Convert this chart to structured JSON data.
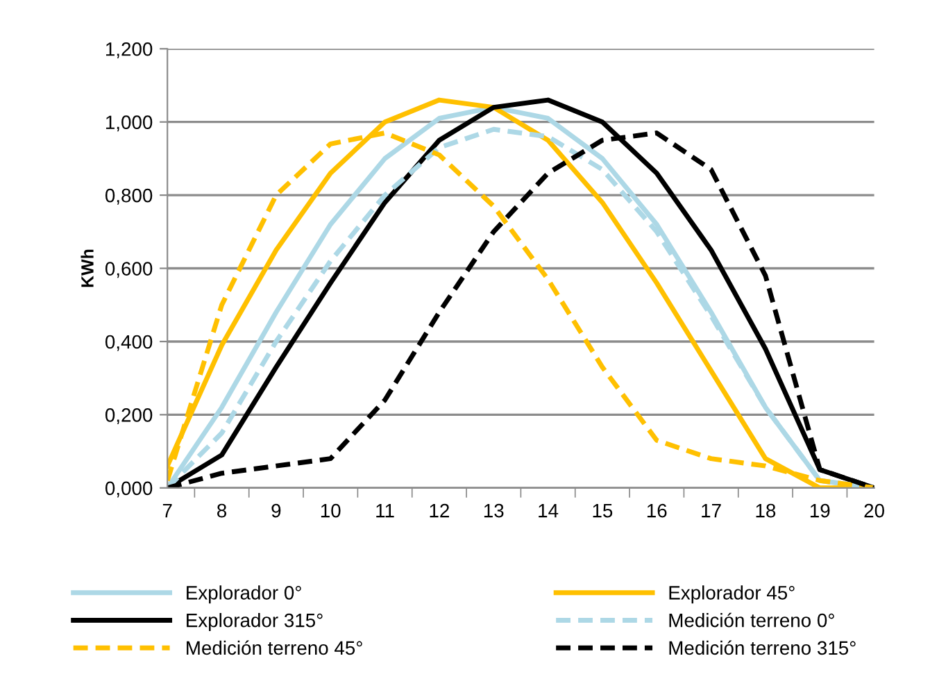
{
  "chart_data": {
    "type": "line",
    "ylabel": "KWh",
    "categories": [
      "7",
      "8",
      "9",
      "10",
      "11",
      "12",
      "13",
      "14",
      "15",
      "16",
      "17",
      "18",
      "19",
      "20"
    ],
    "series": [
      {
        "name": "Explorador 0°",
        "color": "#add8e6",
        "line_style": "solid",
        "values": [
          0.0,
          0.22,
          0.48,
          0.72,
          0.9,
          1.01,
          1.04,
          1.01,
          0.9,
          0.72,
          0.48,
          0.22,
          0.02,
          0.0
        ]
      },
      {
        "name": "Explorador 45°",
        "color": "#ffc000",
        "line_style": "solid",
        "values": [
          0.06,
          0.39,
          0.65,
          0.86,
          1.0,
          1.06,
          1.04,
          0.95,
          0.78,
          0.56,
          0.32,
          0.08,
          0.0,
          0.0
        ]
      },
      {
        "name": "Explorador 315°",
        "color": "#000000",
        "line_style": "solid",
        "values": [
          0.0,
          0.09,
          0.33,
          0.56,
          0.78,
          0.95,
          1.04,
          1.06,
          1.0,
          0.86,
          0.65,
          0.38,
          0.05,
          0.0
        ]
      },
      {
        "name": "Medición terreno 0°",
        "color": "#add8e6",
        "line_style": "dashed",
        "values": [
          0.0,
          0.15,
          0.4,
          0.62,
          0.8,
          0.93,
          0.98,
          0.96,
          0.87,
          0.7,
          0.47,
          0.22,
          0.02,
          0.0
        ]
      },
      {
        "name": "Medición terreno 45°",
        "color": "#ffc000",
        "line_style": "dashed",
        "values": [
          0.02,
          0.5,
          0.8,
          0.94,
          0.97,
          0.91,
          0.77,
          0.57,
          0.33,
          0.13,
          0.08,
          0.06,
          0.02,
          0.0
        ]
      },
      {
        "name": "Medición terreno 315°",
        "color": "#000000",
        "line_style": "dashed",
        "values": [
          0.0,
          0.04,
          0.06,
          0.08,
          0.24,
          0.48,
          0.7,
          0.86,
          0.95,
          0.97,
          0.87,
          0.58,
          0.05,
          0.0
        ]
      }
    ],
    "ylim": [
      0,
      1.2
    ],
    "yticks": [
      {
        "value": 0,
        "label": "0,000"
      },
      {
        "value": 0.2,
        "label": "0,200"
      },
      {
        "value": 0.4,
        "label": "0,400"
      },
      {
        "value": 0.6,
        "label": "0,600"
      },
      {
        "value": 0.8,
        "label": "0,800"
      },
      {
        "value": 1.0,
        "label": "1,000"
      },
      {
        "value": 1.2,
        "label": "1,200"
      }
    ],
    "grid": "y",
    "legend": "bottom",
    "marker": "none"
  }
}
